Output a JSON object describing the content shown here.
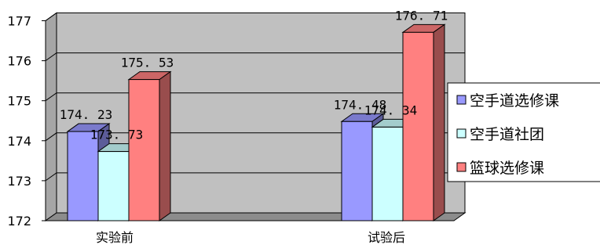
{
  "chart_data": {
    "type": "bar",
    "categories": [
      "实验前",
      "试验后"
    ],
    "series": [
      {
        "name": "空手道选修课",
        "values": [
          174.23,
          174.48
        ],
        "color": "#9999ff"
      },
      {
        "name": "空手道社团",
        "values": [
          173.73,
          174.34
        ],
        "color": "#ccffff"
      },
      {
        "name": "篮球选修课",
        "values": [
          175.53,
          176.71
        ],
        "color": "#ff8080"
      }
    ],
    "yticks": [
      "172",
      "173",
      "174",
      "175",
      "176",
      "177"
    ],
    "ylim": [
      172,
      177
    ],
    "grid": true,
    "legend_position": "right",
    "style_3d": true,
    "wall_color": "#c0c0c0"
  }
}
